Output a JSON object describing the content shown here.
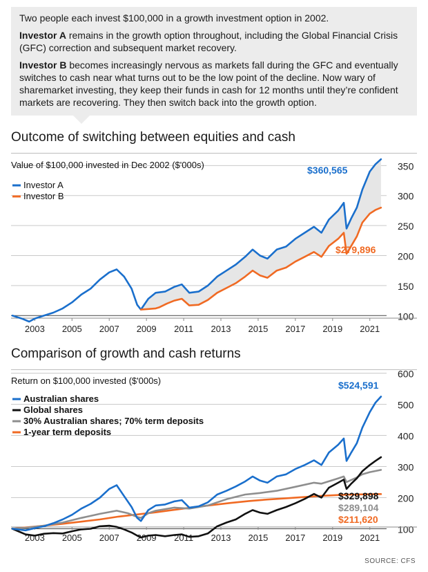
{
  "intro": {
    "p1": "Two people each invest $100,000 in a growth investment option in 2002.",
    "p2_bold": "Investor A",
    "p2_rest": " remains in the growth option throughout, including the Global Financial Crisis (GFC) correction and subsequent market recovery.",
    "p3_bold": "Investor B",
    "p3_rest": " becomes increasingly nervous as markets fall during the GFC and eventually switches to cash near what turns out to be the low point of the decline. Now wary of sharemarket investing, they keep their funds in cash for 12 months until they’re confident markets are recovering. They then switch back into the growth option."
  },
  "source": "SOURCE: CFS",
  "colors": {
    "blue": "#1a6fcc",
    "orange": "#f06a23",
    "black": "#111111",
    "gray": "#8e8e8e",
    "shade": "#e6e6e6"
  },
  "chart_data": [
    {
      "type": "line",
      "title": "Outcome of switching between equities and cash",
      "subtitle": "Value of $100,000 invested in Dec 2002 ($'000s)",
      "xlim": [
        2002.3,
        2022.4
      ],
      "ylim": [
        75,
        370
      ],
      "x_ticks": [
        "2003",
        "2005",
        "2007",
        "2009",
        "2011",
        "2013",
        "2015",
        "2017",
        "2019",
        "2021"
      ],
      "y_ticks": [
        "100",
        "150",
        "200",
        "250",
        "300",
        "350"
      ],
      "grid": true,
      "legend": "top-left",
      "shaded_gap": "between Investor A and Investor B from 2009",
      "end_labels": [
        "$360,565",
        "$279,896"
      ],
      "series": [
        {
          "name": "Investor A",
          "color": "blue",
          "points": [
            [
              2002.3,
              100
            ],
            [
              2002.8,
              95
            ],
            [
              2003.2,
              90
            ],
            [
              2003.5,
              95
            ],
            [
              2004.0,
              100
            ],
            [
              2004.5,
              105
            ],
            [
              2005.0,
              112
            ],
            [
              2005.5,
              122
            ],
            [
              2006.0,
              135
            ],
            [
              2006.5,
              145
            ],
            [
              2007.0,
              160
            ],
            [
              2007.5,
              172
            ],
            [
              2007.9,
              177
            ],
            [
              2008.3,
              165
            ],
            [
              2008.7,
              145
            ],
            [
              2009.0,
              118
            ],
            [
              2009.2,
              110
            ],
            [
              2009.6,
              128
            ],
            [
              2010.0,
              138
            ],
            [
              2010.5,
              140
            ],
            [
              2011.0,
              148
            ],
            [
              2011.4,
              152
            ],
            [
              2011.8,
              138
            ],
            [
              2012.3,
              140
            ],
            [
              2012.8,
              150
            ],
            [
              2013.3,
              165
            ],
            [
              2013.8,
              175
            ],
            [
              2014.3,
              185
            ],
            [
              2014.8,
              198
            ],
            [
              2015.2,
              210
            ],
            [
              2015.6,
              200
            ],
            [
              2016.0,
              195
            ],
            [
              2016.5,
              210
            ],
            [
              2017.0,
              215
            ],
            [
              2017.5,
              228
            ],
            [
              2018.0,
              238
            ],
            [
              2018.5,
              248
            ],
            [
              2018.9,
              238
            ],
            [
              2019.3,
              260
            ],
            [
              2019.8,
              275
            ],
            [
              2020.1,
              288
            ],
            [
              2020.25,
              245
            ],
            [
              2020.5,
              262
            ],
            [
              2020.8,
              280
            ],
            [
              2021.1,
              310
            ],
            [
              2021.5,
              340
            ],
            [
              2021.8,
              352
            ],
            [
              2022.1,
              360.565
            ]
          ]
        },
        {
          "name": "Investor B",
          "color": "orange",
          "points": [
            [
              2009.2,
              110
            ],
            [
              2009.6,
              111
            ],
            [
              2010.0,
              112
            ],
            [
              2010.2,
              114
            ],
            [
              2010.6,
              120
            ],
            [
              2011.0,
              125
            ],
            [
              2011.4,
              128
            ],
            [
              2011.8,
              117
            ],
            [
              2012.3,
              118
            ],
            [
              2012.8,
              126
            ],
            [
              2013.3,
              138
            ],
            [
              2013.8,
              146
            ],
            [
              2014.3,
              154
            ],
            [
              2014.8,
              165
            ],
            [
              2015.2,
              175
            ],
            [
              2015.6,
              167
            ],
            [
              2016.0,
              163
            ],
            [
              2016.5,
              175
            ],
            [
              2017.0,
              180
            ],
            [
              2017.5,
              190
            ],
            [
              2018.0,
              198
            ],
            [
              2018.5,
              206
            ],
            [
              2018.9,
              198
            ],
            [
              2019.3,
              216
            ],
            [
              2019.8,
              228
            ],
            [
              2020.1,
              238
            ],
            [
              2020.25,
              203
            ],
            [
              2020.5,
              216
            ],
            [
              2020.8,
              232
            ],
            [
              2021.1,
              255
            ],
            [
              2021.5,
              270
            ],
            [
              2021.8,
              276
            ],
            [
              2022.1,
              279.896
            ]
          ]
        }
      ]
    },
    {
      "type": "line",
      "title": "Comparison of growth and cash returns",
      "subtitle": "Return on $100,000 invested ($'000s)",
      "xlim": [
        2002.3,
        2022.4
      ],
      "ylim": [
        50,
        610
      ],
      "x_ticks": [
        "2003",
        "2005",
        "2007",
        "2009",
        "2011",
        "2013",
        "2015",
        "2017",
        "2019",
        "2021"
      ],
      "y_ticks": [
        "100",
        "200",
        "300",
        "400",
        "500",
        "600"
      ],
      "grid": true,
      "legend": "top-left",
      "end_labels": [
        "$524,591",
        "$329,898",
        "$289,104",
        "$211,620"
      ],
      "series": [
        {
          "name": "Australian shares",
          "color": "blue",
          "points": [
            [
              2002.3,
              100
            ],
            [
              2003.0,
              95
            ],
            [
              2003.5,
              102
            ],
            [
              2004.0,
              108
            ],
            [
              2004.5,
              118
            ],
            [
              2005.0,
              130
            ],
            [
              2005.5,
              145
            ],
            [
              2006.0,
              165
            ],
            [
              2006.5,
              180
            ],
            [
              2007.0,
              200
            ],
            [
              2007.5,
              228
            ],
            [
              2007.9,
              240
            ],
            [
              2008.3,
              205
            ],
            [
              2008.7,
              170
            ],
            [
              2009.0,
              135
            ],
            [
              2009.2,
              125
            ],
            [
              2009.6,
              160
            ],
            [
              2010.0,
              175
            ],
            [
              2010.5,
              178
            ],
            [
              2011.0,
              188
            ],
            [
              2011.4,
              192
            ],
            [
              2011.8,
              168
            ],
            [
              2012.3,
              172
            ],
            [
              2012.8,
              185
            ],
            [
              2013.3,
              210
            ],
            [
              2013.8,
              222
            ],
            [
              2014.3,
              236
            ],
            [
              2014.8,
              252
            ],
            [
              2015.2,
              268
            ],
            [
              2015.6,
              255
            ],
            [
              2016.0,
              248
            ],
            [
              2016.5,
              268
            ],
            [
              2017.0,
              275
            ],
            [
              2017.5,
              292
            ],
            [
              2018.0,
              305
            ],
            [
              2018.5,
              320
            ],
            [
              2018.9,
              305
            ],
            [
              2019.3,
              345
            ],
            [
              2019.8,
              370
            ],
            [
              2020.1,
              390
            ],
            [
              2020.25,
              318
            ],
            [
              2020.5,
              345
            ],
            [
              2020.8,
              375
            ],
            [
              2021.1,
              425
            ],
            [
              2021.5,
              475
            ],
            [
              2021.8,
              505
            ],
            [
              2022.1,
              524.591
            ]
          ]
        },
        {
          "name": "Global shares",
          "color": "black",
          "points": [
            [
              2002.3,
              100
            ],
            [
              2003.0,
              82
            ],
            [
              2003.5,
              78
            ],
            [
              2004.0,
              84
            ],
            [
              2004.5,
              86
            ],
            [
              2005.0,
              85
            ],
            [
              2005.5,
              92
            ],
            [
              2006.0,
              98
            ],
            [
              2006.5,
              100
            ],
            [
              2007.0,
              108
            ],
            [
              2007.5,
              110
            ],
            [
              2007.9,
              106
            ],
            [
              2008.3,
              98
            ],
            [
              2008.7,
              88
            ],
            [
              2009.0,
              78
            ],
            [
              2009.2,
              72
            ],
            [
              2009.6,
              78
            ],
            [
              2010.0,
              80
            ],
            [
              2010.5,
              76
            ],
            [
              2011.0,
              80
            ],
            [
              2011.4,
              82
            ],
            [
              2011.8,
              74
            ],
            [
              2012.3,
              76
            ],
            [
              2012.8,
              85
            ],
            [
              2013.3,
              108
            ],
            [
              2013.8,
              120
            ],
            [
              2014.3,
              130
            ],
            [
              2014.8,
              148
            ],
            [
              2015.2,
              160
            ],
            [
              2015.6,
              152
            ],
            [
              2016.0,
              148
            ],
            [
              2016.5,
              160
            ],
            [
              2017.0,
              170
            ],
            [
              2017.5,
              182
            ],
            [
              2018.0,
              196
            ],
            [
              2018.5,
              212
            ],
            [
              2018.9,
              200
            ],
            [
              2019.3,
              232
            ],
            [
              2019.8,
              248
            ],
            [
              2020.1,
              258
            ],
            [
              2020.25,
              228
            ],
            [
              2020.5,
              245
            ],
            [
              2020.8,
              262
            ],
            [
              2021.1,
              285
            ],
            [
              2021.5,
              305
            ],
            [
              2021.8,
              318
            ],
            [
              2022.1,
              329.898
            ]
          ]
        },
        {
          "name": "30% Australian shares; 70% term deposits",
          "color": "gray",
          "points": [
            [
              2002.3,
              100
            ],
            [
              2003.0,
              103
            ],
            [
              2004.0,
              110
            ],
            [
              2005.0,
              120
            ],
            [
              2006.0,
              135
            ],
            [
              2007.0,
              148
            ],
            [
              2007.9,
              158
            ],
            [
              2008.5,
              150
            ],
            [
              2009.0,
              138
            ],
            [
              2009.2,
              135
            ],
            [
              2009.6,
              150
            ],
            [
              2010.0,
              158
            ],
            [
              2011.0,
              168
            ],
            [
              2011.8,
              165
            ],
            [
              2012.8,
              175
            ],
            [
              2013.8,
              195
            ],
            [
              2014.8,
              210
            ],
            [
              2015.6,
              215
            ],
            [
              2016.5,
              222
            ],
            [
              2017.5,
              235
            ],
            [
              2018.5,
              248
            ],
            [
              2018.9,
              245
            ],
            [
              2019.8,
              262
            ],
            [
              2020.1,
              268
            ],
            [
              2020.25,
              250
            ],
            [
              2020.8,
              265
            ],
            [
              2021.1,
              275
            ],
            [
              2021.5,
              282
            ],
            [
              2022.1,
              289.104
            ]
          ]
        },
        {
          "name": "1-year term deposits",
          "color": "orange",
          "points": [
            [
              2002.3,
              100
            ],
            [
              2003.0,
              104
            ],
            [
              2004.0,
              110
            ],
            [
              2005.0,
              116
            ],
            [
              2006.0,
              123
            ],
            [
              2007.0,
              130
            ],
            [
              2008.0,
              139
            ],
            [
              2009.0,
              146
            ],
            [
              2010.0,
              153
            ],
            [
              2011.0,
              161
            ],
            [
              2012.0,
              169
            ],
            [
              2013.0,
              176
            ],
            [
              2014.0,
              183
            ],
            [
              2015.0,
              189
            ],
            [
              2016.0,
              194
            ],
            [
              2017.0,
              198
            ],
            [
              2018.0,
              202
            ],
            [
              2019.0,
              206
            ],
            [
              2020.0,
              209
            ],
            [
              2021.0,
              210.5
            ],
            [
              2022.1,
              211.62
            ]
          ]
        }
      ]
    }
  ]
}
